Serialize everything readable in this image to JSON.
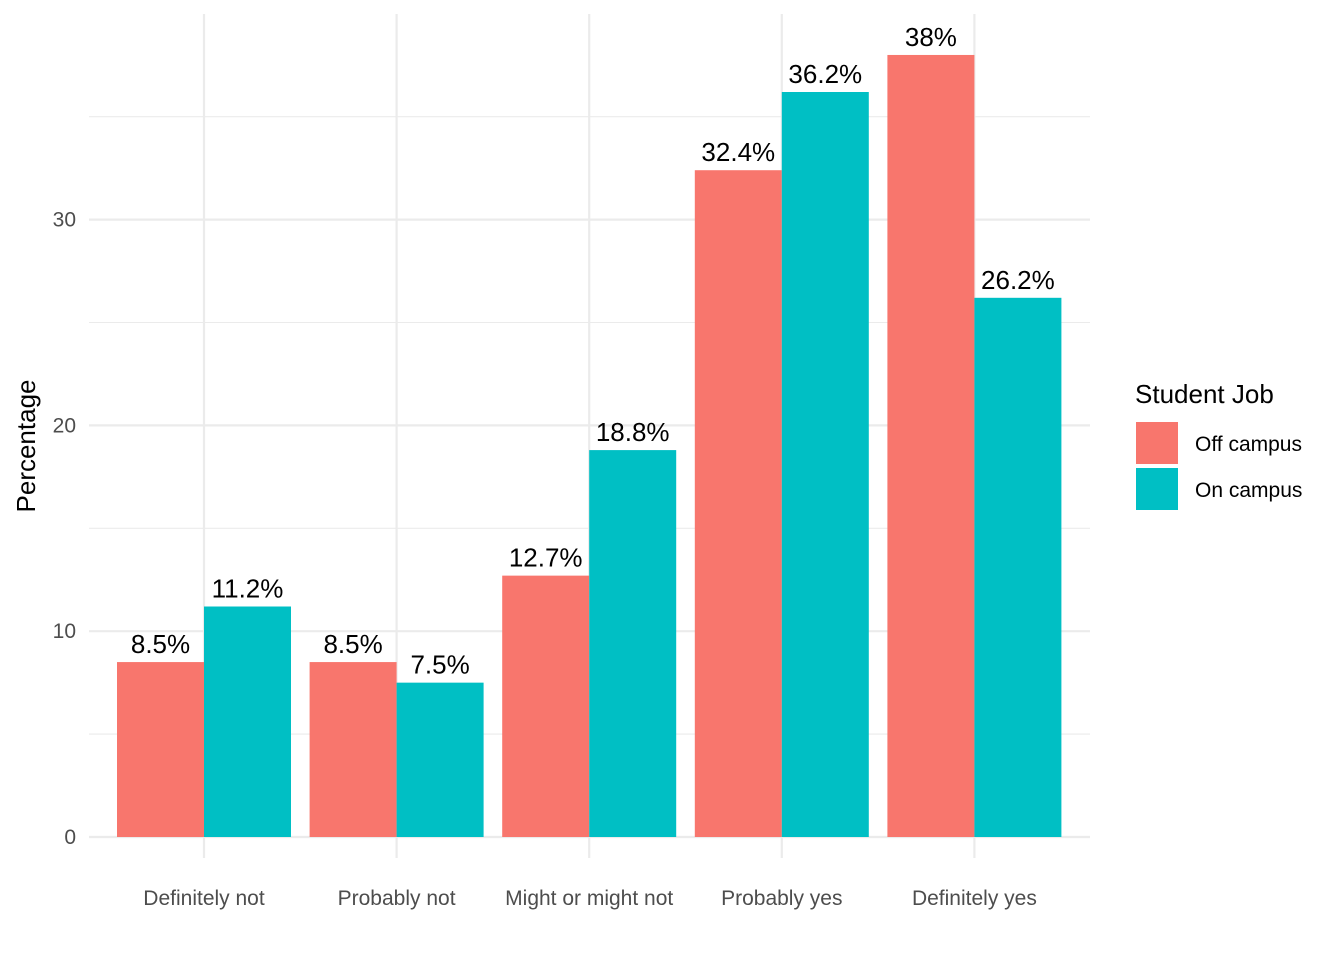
{
  "chart_data": {
    "type": "bar",
    "categories": [
      "Definitely not",
      "Probably not",
      "Might or might not",
      "Probably yes",
      "Definitely yes"
    ],
    "series": [
      {
        "name": "Off campus",
        "values": [
          8.5,
          8.5,
          12.7,
          32.4,
          38
        ],
        "labels": [
          "8.5%",
          "8.5%",
          "12.7%",
          "32.4%",
          "38%"
        ],
        "color": "#F8766D"
      },
      {
        "name": "On campus",
        "values": [
          11.2,
          7.5,
          18.8,
          36.2,
          26.2
        ],
        "labels": [
          "11.2%",
          "7.5%",
          "18.8%",
          "36.2%",
          "26.2%"
        ],
        "color": "#00BFC4"
      }
    ],
    "title": "",
    "xlabel": "",
    "ylabel": "Percentage",
    "ylim": [
      0,
      40
    ],
    "yticks": [
      0,
      10,
      20,
      30
    ],
    "grid": true,
    "legend_title": "Student Job",
    "legend_position": "right"
  }
}
